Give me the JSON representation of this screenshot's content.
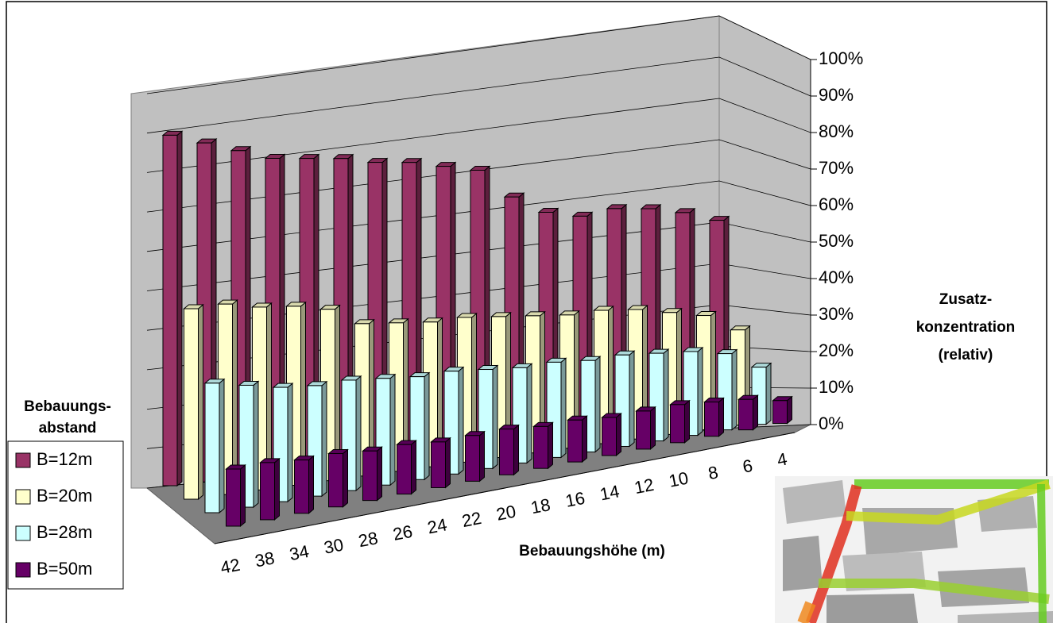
{
  "chart_data": {
    "type": "bar3d",
    "categories": [
      "42",
      "38",
      "34",
      "30",
      "28",
      "26",
      "24",
      "22",
      "20",
      "18",
      "16",
      "14",
      "12",
      "10",
      "8",
      "6",
      "4"
    ],
    "x_label": "Bebauungshöhe (m)",
    "y_label": [
      "Zusatz-",
      "konzentration",
      "(relativ)"
    ],
    "legend_title": [
      "Bebauungs-",
      "abstand"
    ],
    "series": [
      {
        "name": "B=12m",
        "color": "#993366",
        "values": [
          92,
          89,
          86,
          83,
          82,
          81,
          79,
          78,
          76,
          74,
          66,
          61,
          59,
          60,
          59,
          57,
          54
        ]
      },
      {
        "name": "B=20m",
        "color": "#ffffcc",
        "values": [
          50,
          50,
          48,
          47,
          45,
          40,
          39,
          38,
          38,
          37,
          36,
          35,
          35,
          34,
          32,
          30,
          25
        ]
      },
      {
        "name": "B=28m",
        "color": "#ccffff",
        "values": [
          34,
          32,
          30,
          29,
          29,
          28,
          27,
          27,
          26,
          25,
          25,
          24,
          24,
          23,
          22,
          20,
          15
        ]
      },
      {
        "name": "B=50m",
        "color": "#660066",
        "values": [
          15,
          15,
          14,
          14,
          13,
          13,
          12,
          12,
          12,
          11,
          11,
          10,
          10,
          10,
          9,
          8,
          6
        ]
      }
    ],
    "ylim": [
      0,
      100
    ],
    "yticks": [
      {
        "value": 0,
        "label": "0%"
      },
      {
        "value": 10,
        "label": "10%"
      },
      {
        "value": 20,
        "label": "20%"
      },
      {
        "value": 30,
        "label": "30%"
      },
      {
        "value": 40,
        "label": "40%"
      },
      {
        "value": 50,
        "label": "50%"
      },
      {
        "value": 60,
        "label": "60%"
      },
      {
        "value": 70,
        "label": "70%"
      },
      {
        "value": 80,
        "label": "80%"
      },
      {
        "value": 90,
        "label": "90%"
      },
      {
        "value": 100,
        "label": "100%"
      }
    ],
    "grid": true
  }
}
